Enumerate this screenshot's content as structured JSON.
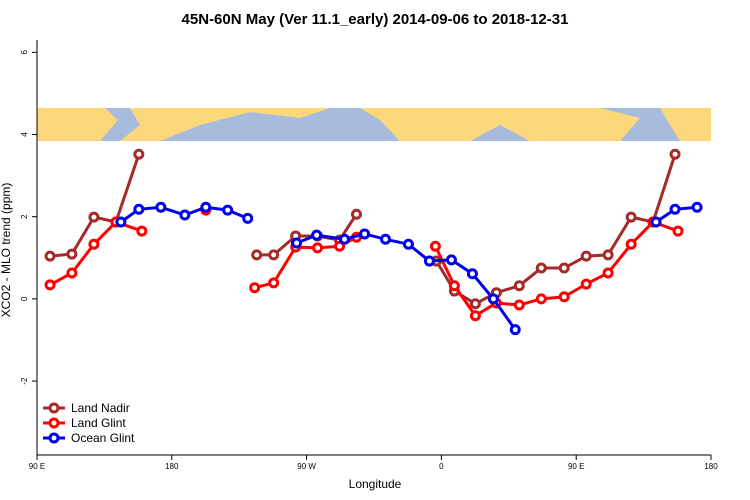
{
  "chart_data": {
    "type": "line",
    "title": "45N-60N May (Ver 11.1_early)   2014-09-06 to 2018-12-31",
    "x_label": "Longitude",
    "y_label": "XCO2 - MLO trend (ppm)",
    "xlim": [
      90,
      540
    ],
    "xticks": [
      {
        "value": 90,
        "label": "90 E"
      },
      {
        "value": 180,
        "label": "180"
      },
      {
        "value": 270,
        "label": "90 W"
      },
      {
        "value": 360,
        "label": "0"
      },
      {
        "value": 450,
        "label": "90 E"
      },
      {
        "value": 540,
        "label": "180"
      }
    ],
    "ylim": [
      -3.8,
      6.3
    ],
    "yticks": [
      -2,
      0,
      2,
      4,
      6
    ],
    "legend": "bottom-left",
    "series": [
      {
        "name": "Land Nadir",
        "color": "#a52a2a",
        "x": [
          98.7,
          113.3,
          128,
          142.7,
          158,
          null,
          236.7,
          248,
          262.7,
          277.3,
          292,
          303.3,
          null,
          356.7,
          368.7,
          382.7,
          396.7,
          412,
          426.7,
          442,
          456.7,
          471.3,
          486.7,
          501.3,
          516
        ],
        "values": [
          1.04,
          1.09,
          1.99,
          1.87,
          3.52,
          null,
          1.07,
          1.07,
          1.53,
          1.53,
          1.43,
          2.06,
          null,
          0.92,
          0.19,
          -0.12,
          0.15,
          0.32,
          0.75,
          0.75,
          1.04,
          1.07,
          1.99,
          1.87,
          3.52
        ]
      },
      {
        "name": "Land Glint",
        "color": "#ff0000",
        "x": [
          98.7,
          113.3,
          128,
          142.7,
          160,
          null,
          202.7,
          null,
          235.3,
          248,
          262.7,
          277.3,
          292,
          303.3,
          null,
          356,
          368.7,
          382.7,
          396.7,
          412,
          426.7,
          442,
          456.7,
          471.3,
          486.7,
          501.3,
          518
        ],
        "values": [
          0.34,
          0.63,
          1.33,
          1.87,
          1.65,
          null,
          2.16,
          null,
          0.27,
          0.39,
          1.26,
          1.24,
          1.28,
          1.5,
          null,
          1.28,
          0.32,
          -0.41,
          -0.1,
          -0.15,
          0,
          0.05,
          0.36,
          0.63,
          1.33,
          1.87,
          1.65
        ]
      },
      {
        "name": "Ocean Glint",
        "color": "#0000ee",
        "x": [
          146,
          158,
          172.7,
          188.7,
          202.7,
          217.3,
          230.7,
          null,
          263.3,
          276.7,
          295.3,
          308.7,
          322.7,
          338,
          352,
          366.7,
          380.7,
          394.7,
          409.3,
          null,
          503.3,
          516,
          530.7
        ],
        "values": [
          1.87,
          2.18,
          2.23,
          2.04,
          2.23,
          2.16,
          1.96,
          null,
          1.36,
          1.55,
          1.45,
          1.58,
          1.45,
          1.33,
          0.92,
          0.95,
          0.61,
          0,
          -0.75,
          null,
          1.87,
          2.18,
          2.23
        ]
      }
    ]
  }
}
